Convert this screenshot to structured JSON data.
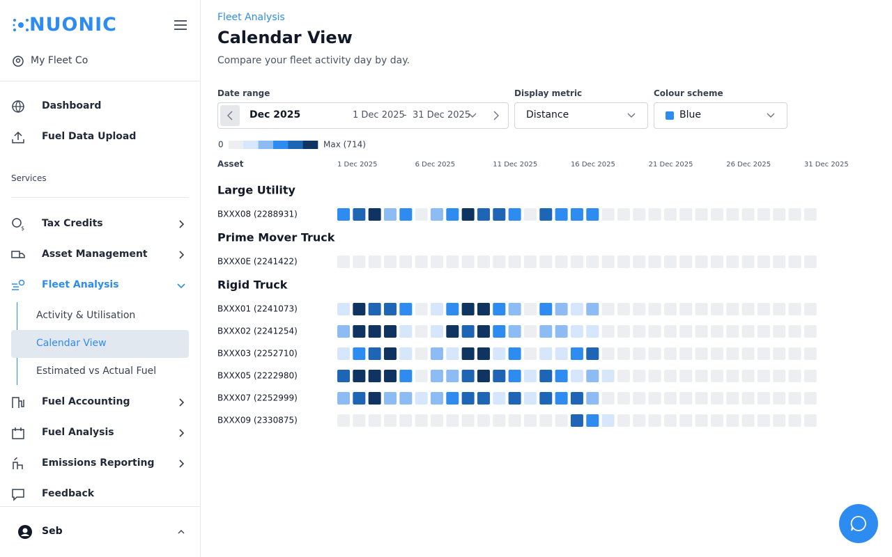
{
  "sidebar": {
    "brand": "NUONIC",
    "org": "My Fleet Co",
    "nav": [
      "Dashboard",
      "Fuel Data Upload"
    ],
    "section": "Services",
    "services": [
      "Tax Credits",
      "Asset Management",
      "Fleet Analysis"
    ],
    "fleet_children": [
      "Activity & Utilisation",
      "Calendar View",
      "Estimated vs Actual Fuel"
    ],
    "more_services": [
      "Fuel Accounting",
      "Fuel Analysis",
      "Emissions Reporting"
    ],
    "feedback": "Feedback",
    "user": "Seb"
  },
  "header": {
    "breadcrumb": "Fleet Analysis",
    "title": "Calendar View",
    "subtitle": "Compare your fleet activity day by day."
  },
  "filters": {
    "date_range": {
      "label": "Date range",
      "month": "Dec 2025",
      "start": "1 Dec 2025",
      "separator": "-",
      "end": "31 Dec 2025"
    },
    "metric": {
      "label": "Display metric",
      "value": "Distance"
    },
    "scheme": {
      "label": "Colour scheme",
      "value": "Blue"
    }
  },
  "legend": {
    "min": "0",
    "max": "Max (714)",
    "colors": [
      "#eceef2",
      "#d6e6fb",
      "#8dbcf5",
      "#2e8cf0",
      "#1f65b5",
      "#0f3461"
    ]
  },
  "calendar": {
    "asset_header": "Asset",
    "date_labels": [
      "1 Dec 2025",
      "6 Dec 2025",
      "11 Dec 2025",
      "16 Dec 2025",
      "21 Dec 2025",
      "26 Dec 2025",
      "31 Dec 2025"
    ],
    "groups": [
      {
        "name": "Large Utility",
        "assets": [
          {
            "name": "BXXX08 (2288931)",
            "levels": [
              3,
              4,
              5,
              2,
              3,
              0,
              2,
              3,
              5,
              4,
              4,
              3,
              0,
              4,
              3,
              3,
              3,
              0,
              0,
              0,
              0,
              0,
              0,
              0,
              0,
              0,
              0,
              0,
              0,
              0,
              0
            ]
          }
        ]
      },
      {
        "name": "Prime Mover Truck",
        "assets": [
          {
            "name": "BXXX0E (2241422)",
            "levels": [
              0,
              0,
              0,
              0,
              0,
              0,
              0,
              0,
              0,
              0,
              0,
              0,
              0,
              0,
              0,
              0,
              0,
              0,
              0,
              0,
              0,
              0,
              0,
              0,
              0,
              0,
              0,
              0,
              0,
              0,
              0
            ]
          }
        ]
      },
      {
        "name": "Rigid Truck",
        "assets": [
          {
            "name": "BXXX01 (2241073)",
            "levels": [
              1,
              5,
              4,
              4,
              3,
              0,
              1,
              3,
              5,
              5,
              3,
              2,
              0,
              3,
              2,
              1,
              2,
              0,
              0,
              0,
              0,
              0,
              0,
              0,
              0,
              0,
              0,
              0,
              0,
              0,
              0
            ]
          },
          {
            "name": "BXXX02 (2241254)",
            "levels": [
              2,
              5,
              5,
              5,
              1,
              0,
              1,
              5,
              4,
              5,
              3,
              2,
              0,
              2,
              2,
              1,
              1,
              0,
              0,
              0,
              0,
              0,
              0,
              0,
              0,
              0,
              0,
              0,
              0,
              0,
              0
            ]
          },
          {
            "name": "BXXX03 (2252710)",
            "levels": [
              1,
              3,
              4,
              5,
              1,
              0,
              2,
              1,
              5,
              5,
              1,
              3,
              0,
              1,
              1,
              3,
              4,
              0,
              0,
              0,
              0,
              0,
              0,
              0,
              0,
              0,
              0,
              0,
              0,
              0,
              0
            ]
          },
          {
            "name": "BXXX05 (2222980)",
            "levels": [
              4,
              5,
              5,
              5,
              3,
              0,
              2,
              2,
              4,
              5,
              4,
              3,
              1,
              4,
              3,
              1,
              2,
              1,
              0,
              0,
              0,
              0,
              0,
              0,
              0,
              0,
              0,
              0,
              0,
              0,
              0
            ]
          },
          {
            "name": "BXXX07 (2252999)",
            "levels": [
              2,
              4,
              5,
              2,
              2,
              1,
              2,
              3,
              4,
              4,
              1,
              4,
              1,
              4,
              3,
              4,
              2,
              0,
              0,
              0,
              0,
              0,
              0,
              0,
              0,
              0,
              0,
              0,
              0,
              0,
              0
            ]
          },
          {
            "name": "BXXX09 (2330875)",
            "levels": [
              0,
              0,
              0,
              0,
              0,
              0,
              0,
              0,
              0,
              0,
              0,
              0,
              0,
              0,
              0,
              4,
              3,
              1,
              0,
              0,
              0,
              0,
              0,
              0,
              0,
              0,
              0,
              0,
              0,
              0,
              0
            ]
          }
        ]
      }
    ]
  }
}
